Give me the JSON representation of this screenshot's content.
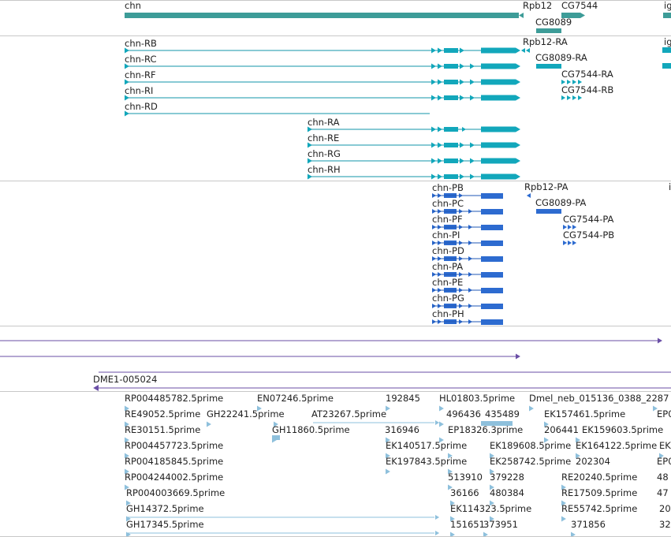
{
  "tracks": {
    "genes": {
      "colors": {
        "fill": "#3d9c98",
        "stroke": "#2f7f7b"
      },
      "labels": [
        {
          "text": "chn",
          "name": "gene-chn"
        },
        {
          "text": "Rpb12",
          "name": "gene-rpb12"
        },
        {
          "text": "CG7544",
          "name": "gene-cg7544"
        },
        {
          "text": "ig",
          "name": "gene-ig-partial"
        },
        {
          "text": "CG8089",
          "name": "gene-cg8089"
        }
      ]
    },
    "transcripts": {
      "colors": {
        "fill": "#12a7bb",
        "stroke": "#1196aa"
      },
      "labels": [
        {
          "text": "chn-RB",
          "name": "transcript-chn-rb"
        },
        {
          "text": "chn-RC",
          "name": "transcript-chn-rc"
        },
        {
          "text": "chn-RF",
          "name": "transcript-chn-rf"
        },
        {
          "text": "chn-RI",
          "name": "transcript-chn-ri"
        },
        {
          "text": "chn-RD",
          "name": "transcript-chn-rd"
        },
        {
          "text": "chn-RA",
          "name": "transcript-chn-ra"
        },
        {
          "text": "chn-RE",
          "name": "transcript-chn-re"
        },
        {
          "text": "chn-RG",
          "name": "transcript-chn-rg"
        },
        {
          "text": "chn-RH",
          "name": "transcript-chn-rh"
        },
        {
          "text": "Rpb12-RA",
          "name": "transcript-rpb12-ra"
        },
        {
          "text": "ig",
          "name": "transcript-ig-partial"
        },
        {
          "text": "CG8089-RA",
          "name": "transcript-cg8089-ra"
        },
        {
          "text": "CG7544-RA",
          "name": "transcript-cg7544-ra"
        },
        {
          "text": "CG7544-RB",
          "name": "transcript-cg7544-rb"
        }
      ]
    },
    "proteins": {
      "colors": {
        "fill": "#2d6bd0",
        "stroke": "#1f57b6"
      },
      "labels": [
        {
          "text": "chn-PB",
          "name": "protein-chn-pb"
        },
        {
          "text": "chn-PC",
          "name": "protein-chn-pc"
        },
        {
          "text": "chn-PF",
          "name": "protein-chn-pf"
        },
        {
          "text": "chn-PI",
          "name": "protein-chn-pi"
        },
        {
          "text": "chn-PD",
          "name": "protein-chn-pd"
        },
        {
          "text": "chn-PA",
          "name": "protein-chn-pa"
        },
        {
          "text": "chn-PE",
          "name": "protein-chn-pe"
        },
        {
          "text": "chn-PG",
          "name": "protein-chn-pg"
        },
        {
          "text": "chn-PH",
          "name": "protein-chn-ph"
        },
        {
          "text": "Rpb12-PA",
          "name": "protein-rpb12-pa"
        },
        {
          "text": "i",
          "name": "protein-i-partial"
        },
        {
          "text": "CG8089-PA",
          "name": "protein-cg8089-pa"
        },
        {
          "text": "CG7544-PA",
          "name": "protein-cg7544-pa"
        },
        {
          "text": "CG7544-PB",
          "name": "protein-cg7544-pb"
        }
      ]
    },
    "alignments": {
      "colors": {
        "fill": "#6a4ea6",
        "stroke": "#6a4ea6"
      },
      "labels": [
        {
          "text": "DME1-005024",
          "name": "alignment-dme1-005024"
        }
      ]
    },
    "ests": {
      "colors": {
        "fill": "#8ec0dc",
        "stroke": "#8ec0dc"
      },
      "labels": [
        {
          "text": "RP004485782.5prime",
          "name": "est-rp004485782"
        },
        {
          "text": "EN07246.5prime",
          "name": "est-en07246"
        },
        {
          "text": "192845",
          "name": "est-192845"
        },
        {
          "text": "HL01803.5prime",
          "name": "est-hl01803"
        },
        {
          "text": "Dmel_neb_015136_0388_2287",
          "name": "est-dmel-neb"
        },
        {
          "text": "RE49052.5prime",
          "name": "est-re49052"
        },
        {
          "text": "GH22241.5prime",
          "name": "est-gh22241"
        },
        {
          "text": "AT23267.5prime",
          "name": "est-at23267"
        },
        {
          "text": "496436",
          "name": "est-496436"
        },
        {
          "text": "435489",
          "name": "est-435489"
        },
        {
          "text": "EK157461.5prime",
          "name": "est-ek157461"
        },
        {
          "text": "EP0",
          "name": "est-ep0-a"
        },
        {
          "text": "RE30151.5prime",
          "name": "est-re30151"
        },
        {
          "text": "GH11860.5prime",
          "name": "est-gh11860"
        },
        {
          "text": "316946",
          "name": "est-316946"
        },
        {
          "text": "EP18326.3prime",
          "name": "est-ep18326"
        },
        {
          "text": "206441",
          "name": "est-206441"
        },
        {
          "text": "EK159603.5prime",
          "name": "est-ek159603"
        },
        {
          "text": "RP004457723.5prime",
          "name": "est-rp004457723"
        },
        {
          "text": "EK140517.5prime",
          "name": "est-ek140517"
        },
        {
          "text": "EK189608.5prime",
          "name": "est-ek189608"
        },
        {
          "text": "EK164122.5prime",
          "name": "est-ek164122"
        },
        {
          "text": "EK",
          "name": "est-ek-partial"
        },
        {
          "text": "RP004185845.5prime",
          "name": "est-rp004185845"
        },
        {
          "text": "EK197843.5prime",
          "name": "est-ek197843"
        },
        {
          "text": "EK258742.5prime",
          "name": "est-ek258742"
        },
        {
          "text": "202304",
          "name": "est-202304"
        },
        {
          "text": "EP0",
          "name": "est-ep0-b"
        },
        {
          "text": "RP004244002.5prime",
          "name": "est-rp004244002"
        },
        {
          "text": "513910",
          "name": "est-513910"
        },
        {
          "text": "379228",
          "name": "est-379228"
        },
        {
          "text": "RE20240.5prime",
          "name": "est-re20240"
        },
        {
          "text": "48",
          "name": "est-48-partial"
        },
        {
          "text": "RP004003669.5prime",
          "name": "est-rp004003669"
        },
        {
          "text": "36166",
          "name": "est-36166"
        },
        {
          "text": "480384",
          "name": "est-480384"
        },
        {
          "text": "RE17509.5prime",
          "name": "est-re17509"
        },
        {
          "text": "47",
          "name": "est-47-partial"
        },
        {
          "text": "GH14372.5prime",
          "name": "est-gh14372"
        },
        {
          "text": "EK114323.5prime",
          "name": "est-ek114323"
        },
        {
          "text": "RE55742.5prime",
          "name": "est-re55742"
        },
        {
          "text": "20",
          "name": "est-20-partial"
        },
        {
          "text": "GH17345.5prime",
          "name": "est-gh17345"
        },
        {
          "text": "151651",
          "name": "est-151651"
        },
        {
          "text": "373951",
          "name": "est-373951"
        },
        {
          "text": "371856",
          "name": "est-371856"
        },
        {
          "text": "32",
          "name": "est-32-partial"
        }
      ]
    }
  }
}
